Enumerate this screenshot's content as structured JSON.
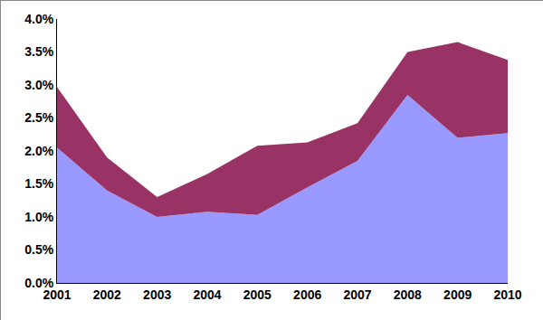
{
  "chart_data": {
    "type": "area",
    "stacked": true,
    "grid": false,
    "categories": [
      "2001",
      "2002",
      "2003",
      "2004",
      "2005",
      "2006",
      "2007",
      "2008",
      "2009",
      "2010"
    ],
    "series": [
      {
        "color": "#9999ff",
        "values": [
          2.05,
          1.4,
          1.0,
          1.08,
          1.03,
          1.45,
          1.85,
          2.85,
          2.2,
          2.27
        ]
      },
      {
        "color": "#993366",
        "values": [
          0.92,
          0.5,
          0.3,
          0.57,
          1.05,
          0.68,
          0.57,
          0.65,
          1.45,
          1.11
        ]
      }
    ],
    "ylim": [
      0,
      4
    ],
    "yticks": [
      {
        "value": 0,
        "label": "0.0%"
      },
      {
        "value": 0.5,
        "label": "0.5%"
      },
      {
        "value": 1,
        "label": "1.0%"
      },
      {
        "value": 1.5,
        "label": "1.5%"
      },
      {
        "value": 2,
        "label": "2.0%"
      },
      {
        "value": 2.5,
        "label": "2.5%"
      },
      {
        "value": 3,
        "label": "3.0%"
      },
      {
        "value": 3.5,
        "label": "3.5%"
      },
      {
        "value": 4,
        "label": "4.0%"
      }
    ]
  }
}
